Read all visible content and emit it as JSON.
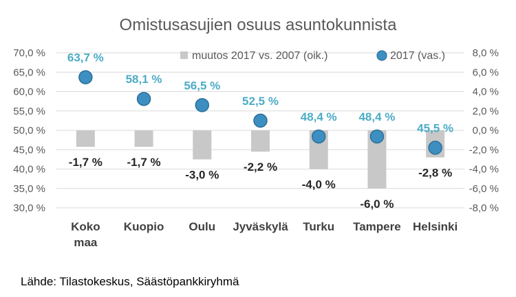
{
  "chart_data": {
    "type": "bar+scatter",
    "title": "Omistusasujien osuus asuntokunnista",
    "categories": [
      [
        "Koko",
        "maa"
      ],
      [
        "Kuopio"
      ],
      [
        "Oulu"
      ],
      [
        "Jyväskylä"
      ],
      [
        "Turku"
      ],
      [
        "Tampere"
      ],
      [
        "Helsinki"
      ]
    ],
    "series": [
      {
        "name": "muutos 2017 vs. 2007 (oik.)",
        "type": "bar",
        "axis": "right",
        "color": "#c8c8c8",
        "values": [
          -1.7,
          -1.7,
          -3.0,
          -2.2,
          -4.0,
          -6.0,
          -2.8
        ],
        "labels": [
          "-1,7 %",
          "-1,7 %",
          "-3,0 %",
          "-2,2 %",
          "-4,0 %",
          "-6,0 %",
          "-2,8 %"
        ],
        "label_color": "#262626"
      },
      {
        "name": "2017 (vas.)",
        "type": "scatter",
        "axis": "left",
        "color": "#3d8fc1",
        "values": [
          63.7,
          58.1,
          56.5,
          52.5,
          48.4,
          48.4,
          45.5
        ],
        "labels": [
          "63,7 %",
          "58,1 %",
          "56,5 %",
          "52,5 %",
          "48,4 %",
          "48,4 %",
          "45,5 %"
        ],
        "label_color": "#4bacc6"
      }
    ],
    "y_left": {
      "range": [
        30,
        70
      ],
      "ticks": [
        "30,0 %",
        "35,0 %",
        "40,0 %",
        "45,0 %",
        "50,0 %",
        "55,0 %",
        "60,0 %",
        "65,0 %",
        "70,0 %"
      ]
    },
    "y_right": {
      "range": [
        -8,
        8
      ],
      "ticks": [
        "-8,0 %",
        "-6,0 %",
        "-4,0 %",
        "-2,0 %",
        "0,0 %",
        "2,0 %",
        "4,0 %",
        "6,0 %",
        "8,0 %"
      ]
    },
    "grid": true,
    "legend": "top-right"
  },
  "source": "Lähde: Tilastokeskus, Säästöpankkiryhmä"
}
